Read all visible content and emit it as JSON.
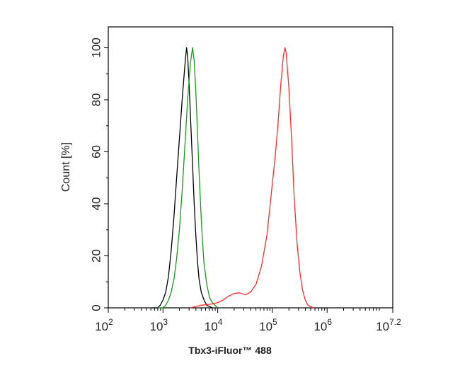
{
  "chart_data": {
    "type": "line",
    "title": "",
    "xlabel": "Tbx3-iFluor™ 488",
    "ylabel": "Count [%]",
    "x_scale": "log",
    "xlim": [
      100,
      15848932
    ],
    "ylim": [
      0,
      108
    ],
    "grid": false,
    "x_ticks": [
      {
        "base": "10",
        "exp": "2"
      },
      {
        "base": "10",
        "exp": "3"
      },
      {
        "base": "10",
        "exp": "4"
      },
      {
        "base": "10",
        "exp": "5"
      },
      {
        "base": "10",
        "exp": "6"
      },
      {
        "base": "10",
        "exp": "7.2"
      }
    ],
    "y_ticks": [
      "0",
      "20",
      "40",
      "60",
      "80",
      "100"
    ],
    "series": [
      {
        "color": "#000000",
        "points": [
          [
            631,
            0
          ],
          [
            794,
            0
          ],
          [
            891,
            1
          ],
          [
            1000,
            3
          ],
          [
            1122,
            6
          ],
          [
            1259,
            12
          ],
          [
            1413,
            22
          ],
          [
            1585,
            35
          ],
          [
            1778,
            50
          ],
          [
            1995,
            65
          ],
          [
            2239,
            80
          ],
          [
            2512,
            93
          ],
          [
            2692,
            100
          ],
          [
            2818,
            97
          ],
          [
            3020,
            85
          ],
          [
            3236,
            70
          ],
          [
            3467,
            55
          ],
          [
            3715,
            40
          ],
          [
            3981,
            28
          ],
          [
            4266,
            18
          ],
          [
            4571,
            11
          ],
          [
            5012,
            6
          ],
          [
            5623,
            3
          ],
          [
            6310,
            1
          ],
          [
            7943,
            0
          ]
        ]
      },
      {
        "color": "#1a9a1a",
        "points": [
          [
            794,
            0
          ],
          [
            1000,
            0
          ],
          [
            1122,
            1
          ],
          [
            1259,
            3
          ],
          [
            1413,
            6
          ],
          [
            1585,
            11
          ],
          [
            1778,
            19
          ],
          [
            1995,
            30
          ],
          [
            2239,
            45
          ],
          [
            2512,
            62
          ],
          [
            2818,
            80
          ],
          [
            3162,
            94
          ],
          [
            3467,
            100
          ],
          [
            3715,
            95
          ],
          [
            3981,
            83
          ],
          [
            4266,
            68
          ],
          [
            4571,
            52
          ],
          [
            4898,
            38
          ],
          [
            5248,
            26
          ],
          [
            5623,
            17
          ],
          [
            6310,
            9
          ],
          [
            7079,
            4
          ],
          [
            7943,
            2
          ],
          [
            10000,
            0
          ]
        ]
      },
      {
        "color": "#ff2a2a",
        "points": [
          [
            3162,
            0
          ],
          [
            5012,
            1
          ],
          [
            7943,
            1.5
          ],
          [
            10000,
            2
          ],
          [
            12589,
            3
          ],
          [
            15849,
            4.5
          ],
          [
            19953,
            5.5
          ],
          [
            25119,
            5.8
          ],
          [
            31623,
            5
          ],
          [
            39811,
            6
          ],
          [
            50119,
            9
          ],
          [
            63096,
            16
          ],
          [
            79433,
            28
          ],
          [
            89125,
            38
          ],
          [
            100000,
            48
          ],
          [
            112202,
            58
          ],
          [
            125893,
            70
          ],
          [
            141254,
            85
          ],
          [
            158489,
            97
          ],
          [
            169824,
            100
          ],
          [
            177828,
            98
          ],
          [
            199526,
            85
          ],
          [
            223872,
            65
          ],
          [
            251189,
            42
          ],
          [
            281838,
            25
          ],
          [
            316228,
            14
          ],
          [
            354813,
            7
          ],
          [
            398107,
            3
          ],
          [
            446684,
            1
          ],
          [
            562341,
            0
          ]
        ]
      }
    ]
  }
}
